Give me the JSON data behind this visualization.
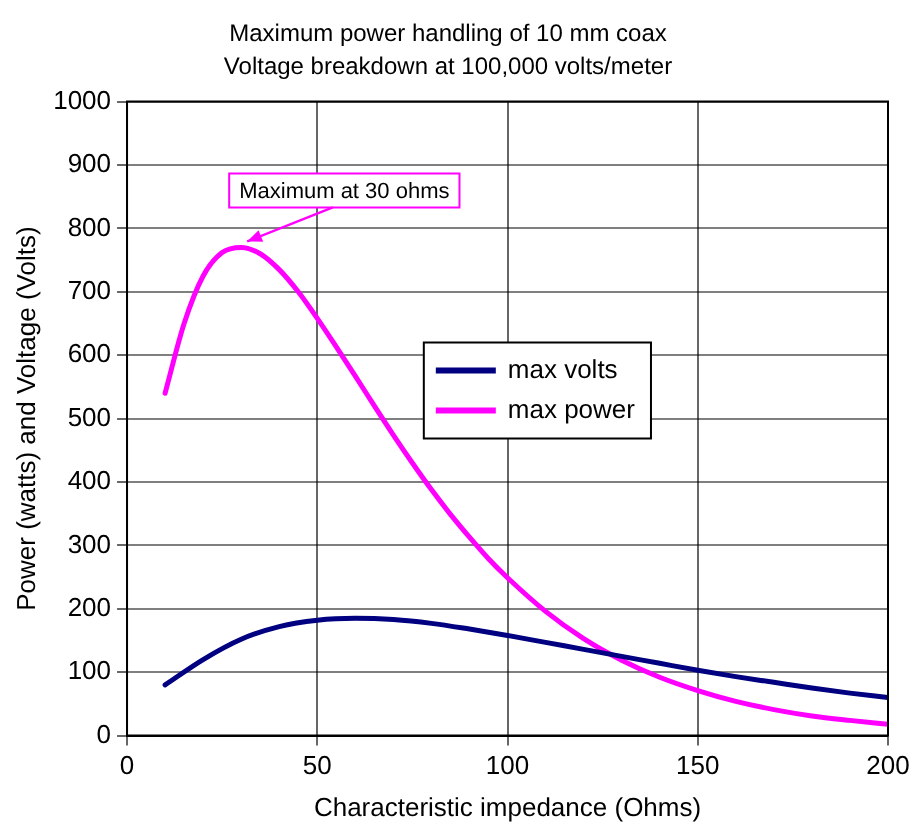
{
  "chart_data": {
    "type": "line",
    "title": "Maximum power handling of 10 mm coax",
    "subtitle": "Voltage breakdown at 100,000 volts/meter",
    "xlabel": "Characteristic impedance (Ohms)",
    "ylabel": "Power (watts) and Voltage (Volts)",
    "xlim": [
      0,
      200
    ],
    "xticks": [
      0,
      50,
      100,
      150,
      200
    ],
    "ylim": [
      0,
      1000
    ],
    "yticks": [
      0,
      100,
      200,
      300,
      400,
      500,
      600,
      700,
      800,
      900,
      1000
    ],
    "grid": true,
    "legend": "center",
    "marker": "none",
    "line_style": "solid",
    "series": [
      {
        "name": "max volts",
        "color": "#000080",
        "x": [
          10,
          20,
          30,
          40,
          50,
          60,
          70,
          80,
          90,
          100,
          110,
          120,
          130,
          140,
          150,
          160,
          170,
          180,
          190,
          200
        ],
        "values": [
          80,
          120,
          152,
          172,
          182,
          185,
          183,
          177,
          168,
          158,
          147,
          136,
          125,
          114,
          103,
          93,
          84,
          75,
          67,
          60
        ]
      },
      {
        "name": "max power",
        "color": "#ff00ff",
        "x": [
          10,
          15,
          20,
          25,
          30,
          35,
          40,
          45,
          50,
          55,
          60,
          65,
          70,
          75,
          80,
          85,
          90,
          95,
          100,
          110,
          120,
          130,
          140,
          150,
          160,
          170,
          180,
          190,
          200
        ],
        "values": [
          540,
          650,
          725,
          762,
          770,
          760,
          735,
          700,
          658,
          613,
          567,
          520,
          474,
          430,
          388,
          349,
          313,
          279,
          249,
          196,
          153,
          119,
          92,
          71,
          54,
          41,
          31,
          24,
          18
        ]
      }
    ],
    "annotations": [
      {
        "text": "Maximum at 30 ohms",
        "x": 30,
        "y": 770
      }
    ]
  }
}
